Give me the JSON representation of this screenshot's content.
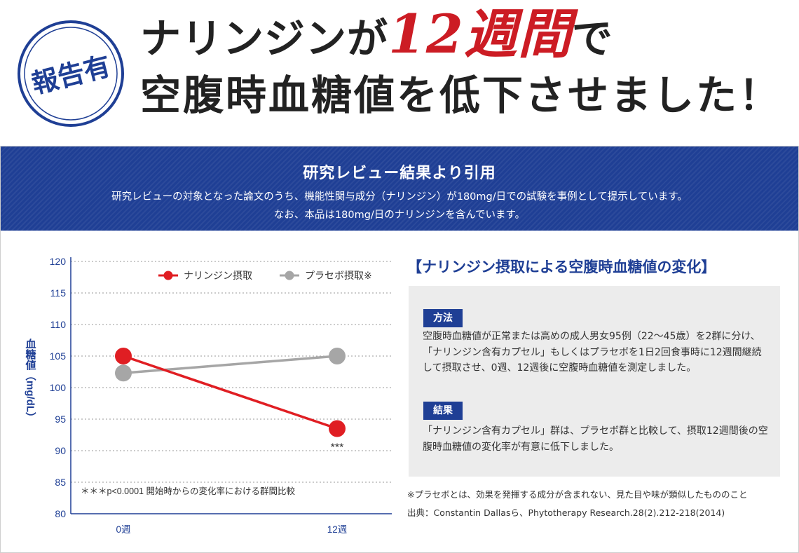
{
  "stamp": {
    "text": "報告有"
  },
  "headline": {
    "line1_pre": "ナリンジンが",
    "line1_highlight": "12週間",
    "line1_post": "で",
    "line2": "空腹時血糖値を低下させました！"
  },
  "banner": {
    "title": "研究レビュー結果より引用",
    "line1": "研究レビューの対象となった論文のうち、機能性関与成分（ナリンジン）が180mg/日での試験を事例として提示しています。",
    "line2": "なお、本品は180mg/日のナリンジンを含んでいます。"
  },
  "chart_data": {
    "type": "line",
    "x": [
      "0週",
      "12週"
    ],
    "series": [
      {
        "name": "ナリンジン摂取",
        "values": [
          105,
          93.5
        ],
        "color": "#e01e23"
      },
      {
        "name": "プラセボ摂取※",
        "values": [
          102.3,
          105
        ],
        "color": "#a6a6a6"
      }
    ],
    "ylabel": "血糖値（mg/dL）",
    "ylim": [
      80,
      120
    ],
    "yticks": [
      80,
      85,
      90,
      95,
      100,
      105,
      110,
      115,
      120
    ],
    "grid": true,
    "legend": "top-right",
    "annotations": {
      "significance_mark": "***",
      "footnote": "＊＊＊p<0.0001 開始時からの変化率における群間比較"
    }
  },
  "right": {
    "title": "【ナリンジン摂取による空腹時血糖値の変化】",
    "method_label": "方法",
    "method_text": "空腹時血糖値が正常または高めの成人男女95例（22〜45歳）を2群に分け、「ナリンジン含有カプセル」もしくはプラセボを1日2回食事時に12週間継続して摂取させ、0週、12週後に空腹時血糖値を測定しました。",
    "result_label": "結果",
    "result_text": "「ナリンジン含有カプセル」群は、プラセボ群と比較して、摂取12週間後の空腹時血糖値の変化率が有意に低下しました。",
    "note1": "※プラセボとは、効果を発揮する成分が含まれない、見た目や味が類似したもののこと",
    "note2": "出典：Constantin Dallasら、Phytotherapy Research.28(2).212-218(2014)"
  },
  "colors": {
    "navy": "#1f3f95",
    "red": "#e01e23",
    "gray": "#a6a6a6",
    "headline_red": "#cc1c24"
  }
}
